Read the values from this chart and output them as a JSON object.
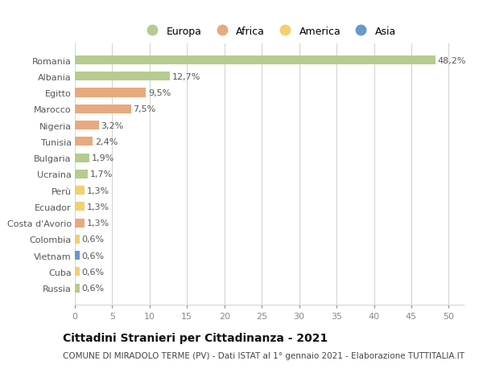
{
  "title": "Cittadini Stranieri per Cittadinanza - 2021",
  "subtitle": "COMUNE DI MIRADOLO TERME (PV) - Dati ISTAT al 1° gennaio 2021 - Elaborazione TUTTITALIA.IT",
  "countries": [
    "Romania",
    "Albania",
    "Egitto",
    "Marocco",
    "Nigeria",
    "Tunisia",
    "Bulgaria",
    "Ucraina",
    "Perù",
    "Ecuador",
    "Costa d'Avorio",
    "Colombia",
    "Vietnam",
    "Cuba",
    "Russia"
  ],
  "values": [
    48.2,
    12.7,
    9.5,
    7.5,
    3.2,
    2.4,
    1.9,
    1.7,
    1.3,
    1.3,
    1.3,
    0.6,
    0.6,
    0.6,
    0.6
  ],
  "labels": [
    "48,2%",
    "12,7%",
    "9,5%",
    "7,5%",
    "3,2%",
    "2,4%",
    "1,9%",
    "1,7%",
    "1,3%",
    "1,3%",
    "1,3%",
    "0,6%",
    "0,6%",
    "0,6%",
    "0,6%"
  ],
  "continents": [
    "Europa",
    "Europa",
    "Africa",
    "Africa",
    "Africa",
    "Africa",
    "Europa",
    "Europa",
    "America",
    "America",
    "Africa",
    "America",
    "Asia",
    "America",
    "Europa"
  ],
  "continent_colors": {
    "Europa": "#b5cc8e",
    "Africa": "#e8a97e",
    "America": "#f0d070",
    "Asia": "#6699cc"
  },
  "legend_items": [
    "Europa",
    "Africa",
    "America",
    "Asia"
  ],
  "legend_colors": [
    "#b5cc8e",
    "#e8a97e",
    "#f0d070",
    "#6699cc"
  ],
  "xlim": [
    0,
    52
  ],
  "xticks": [
    0,
    5,
    10,
    15,
    20,
    25,
    30,
    35,
    40,
    45,
    50
  ],
  "background_color": "#ffffff",
  "grid_color": "#d5d5d5",
  "bar_height": 0.55,
  "title_fontsize": 10,
  "subtitle_fontsize": 7.5,
  "tick_fontsize": 8,
  "label_fontsize": 8,
  "legend_fontsize": 9
}
